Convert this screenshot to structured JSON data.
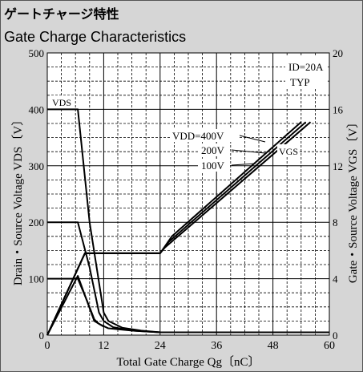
{
  "title_jp": "ゲートチャージ特性",
  "title_en": "Gate Charge Characteristics",
  "chart_data": {
    "type": "line",
    "xlabel": "Total Gate Charge Qg〔nC〕",
    "ylabel_left": "Drain・Source Voltage VDS〔V〕",
    "ylabel_right": "Gate・Source Voltage VGS〔V〕",
    "xlim": [
      0,
      60
    ],
    "ylim_left": [
      0,
      500
    ],
    "ylim_right": [
      0,
      20
    ],
    "x_ticks": [
      "0",
      "12",
      "24",
      "36",
      "48",
      "60"
    ],
    "y_left_ticks": [
      "0",
      "100",
      "200",
      "300",
      "400",
      "500"
    ],
    "y_right_ticks": [
      "0",
      "4",
      "8",
      "12",
      "16",
      "20"
    ],
    "grid": true,
    "condition_lines": [
      "ID=20A",
      "TYP"
    ],
    "labels": {
      "vds": "VDS",
      "vgs": "VGS",
      "vdd_400": "VDD=400V",
      "vdd_200": "200V",
      "vdd_100": "100V"
    },
    "vds_series": [
      {
        "name": "VDD=400V",
        "axis": "left",
        "x": [
          0,
          6.5,
          9,
          12,
          13,
          16,
          20,
          24,
          60
        ],
        "y": [
          400,
          400,
          200,
          40,
          25,
          13,
          8,
          5,
          5
        ]
      },
      {
        "name": "VDD=200V",
        "axis": "left",
        "x": [
          0,
          6.5,
          9,
          11,
          12,
          14,
          18,
          24,
          60
        ],
        "y": [
          200,
          200,
          120,
          40,
          25,
          14,
          8,
          5,
          5
        ]
      },
      {
        "name": "VDD=100V",
        "axis": "left",
        "x": [
          0,
          6.5,
          8.5,
          10,
          11,
          13,
          18,
          24,
          60
        ],
        "y": [
          100,
          100,
          60,
          28,
          20,
          12,
          8,
          5,
          5
        ]
      }
    ],
    "vgs_series": [
      {
        "name": "VDD=400V",
        "axis": "right",
        "x": [
          0,
          8,
          24,
          26.5,
          54
        ],
        "y": [
          0,
          5.8,
          5.8,
          7,
          15.1
        ]
      },
      {
        "name": "VDD=200V",
        "axis": "right",
        "x": [
          0,
          8,
          24,
          25.8,
          55
        ],
        "y": [
          0,
          5.8,
          5.8,
          6.6,
          15.1
        ]
      },
      {
        "name": "VDD=100V",
        "axis": "right",
        "x": [
          0,
          8,
          24,
          25,
          56
        ],
        "y": [
          0,
          5.8,
          5.8,
          6.2,
          15.1
        ]
      }
    ],
    "vgs_left_spike": {
      "axis": "right",
      "x": [
        0,
        6.5,
        10,
        12
      ],
      "y": [
        0,
        4.2,
        1,
        0.6
      ]
    }
  }
}
